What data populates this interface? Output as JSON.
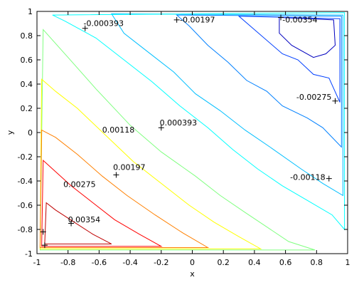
{
  "chart_data": {
    "type": "contour",
    "xlabel": "x",
    "ylabel": "y",
    "xlim": [
      -1,
      1
    ],
    "ylim": [
      -1,
      1
    ],
    "xticks": [
      "-1",
      "-0.8",
      "-0.6",
      "-0.4",
      "-0.2",
      "0",
      "0.2",
      "0.4",
      "0.6",
      "0.8",
      "1"
    ],
    "yticks": [
      "1",
      "0.8",
      "0.6",
      "0.4",
      "0.2",
      "0",
      "-0.2",
      "-0.4",
      "-0.6",
      "-0.8",
      "-1"
    ],
    "grid": false,
    "contours": [
      {
        "level": -0.00354,
        "color": "#0000bf",
        "points": [
          [
            0.56,
            0.95
          ],
          [
            0.91,
            0.93
          ],
          [
            0.92,
            0.72
          ],
          [
            0.86,
            0.65
          ],
          [
            0.78,
            0.62
          ],
          [
            0.64,
            0.72
          ],
          [
            0.56,
            0.82
          ]
        ]
      },
      {
        "level": -0.00275,
        "color": "#003fff",
        "points": [
          [
            0.3,
            0.96
          ],
          [
            0.95,
            0.94
          ],
          [
            0.95,
            0.25
          ],
          [
            0.88,
            0.45
          ],
          [
            0.78,
            0.48
          ],
          [
            0.68,
            0.6
          ],
          [
            0.58,
            0.65
          ]
        ]
      },
      {
        "level": -0.00197,
        "color": "#0080ff",
        "points": [
          [
            -0.1,
            0.97
          ],
          [
            0.96,
            0.96
          ],
          [
            0.96,
            -0.12
          ],
          [
            0.84,
            0.04
          ],
          [
            0.74,
            0.12
          ],
          [
            0.58,
            0.22
          ],
          [
            0.48,
            0.34
          ],
          [
            0.35,
            0.43
          ],
          [
            0.23,
            0.58
          ],
          [
            0.1,
            0.72
          ],
          [
            -0.02,
            0.88
          ]
        ]
      },
      {
        "level": -0.00118,
        "color": "#00bfff",
        "points": [
          [
            -0.52,
            0.98
          ],
          [
            0.97,
            0.97
          ],
          [
            0.97,
            -0.52
          ],
          [
            0.84,
            -0.42
          ],
          [
            0.7,
            -0.3
          ],
          [
            0.5,
            -0.12
          ],
          [
            0.34,
            0.02
          ],
          [
            0.18,
            0.18
          ],
          [
            0.02,
            0.32
          ],
          [
            -0.12,
            0.5
          ],
          [
            -0.28,
            0.66
          ],
          [
            -0.44,
            0.82
          ]
        ]
      },
      {
        "level": -0.000393,
        "color": "#00ffff",
        "points": [
          [
            -0.9,
            0.97
          ],
          [
            0.98,
            0.99
          ],
          [
            0.98,
            -0.8
          ],
          [
            0.9,
            -0.68
          ],
          [
            0.74,
            -0.56
          ],
          [
            0.58,
            -0.44
          ],
          [
            0.42,
            -0.3
          ],
          [
            0.26,
            -0.14
          ],
          [
            0.1,
            0.04
          ],
          [
            -0.08,
            0.22
          ],
          [
            -0.26,
            0.42
          ],
          [
            -0.44,
            0.6
          ],
          [
            -0.62,
            0.78
          ],
          [
            -0.82,
            0.92
          ]
        ]
      },
      {
        "level": 0.000393,
        "color": "#80ff80",
        "points": [
          [
            -0.96,
            0.85
          ],
          [
            -0.98,
            -0.97
          ],
          [
            0.79,
            -0.97
          ],
          [
            0.62,
            -0.9
          ],
          [
            0.48,
            -0.78
          ],
          [
            0.34,
            -0.66
          ],
          [
            0.18,
            -0.52
          ],
          [
            0.02,
            -0.36
          ],
          [
            -0.2,
            -0.16
          ],
          [
            -0.4,
            0.06
          ],
          [
            -0.62,
            0.36
          ],
          [
            -0.8,
            0.62
          ]
        ]
      },
      {
        "level": 0.00118,
        "color": "#ffff00",
        "points": [
          [
            -0.97,
            0.44
          ],
          [
            -0.98,
            -0.96
          ],
          [
            0.44,
            -0.96
          ],
          [
            0.3,
            -0.86
          ],
          [
            0.14,
            -0.74
          ],
          [
            -0.02,
            -0.6
          ],
          [
            -0.2,
            -0.42
          ],
          [
            -0.38,
            -0.24
          ],
          [
            -0.56,
            -0.02
          ],
          [
            -0.74,
            0.2
          ],
          [
            -0.88,
            0.34
          ]
        ]
      },
      {
        "level": 0.00197,
        "color": "#ff8000",
        "points": [
          [
            -0.97,
            0.02
          ],
          [
            -0.98,
            -0.95
          ],
          [
            0.1,
            -0.95
          ],
          [
            -0.06,
            -0.83
          ],
          [
            -0.24,
            -0.68
          ],
          [
            -0.42,
            -0.52
          ],
          [
            -0.58,
            -0.36
          ],
          [
            -0.74,
            -0.18
          ],
          [
            -0.88,
            -0.04
          ]
        ]
      },
      {
        "level": 0.00275,
        "color": "#ff0000",
        "points": [
          [
            -0.96,
            -0.23
          ],
          [
            -0.97,
            -0.94
          ],
          [
            -0.2,
            -0.94
          ],
          [
            -0.34,
            -0.84
          ],
          [
            -0.5,
            -0.72
          ],
          [
            -0.64,
            -0.58
          ],
          [
            -0.78,
            -0.44
          ],
          [
            -0.9,
            -0.3
          ]
        ]
      },
      {
        "level": 0.00354,
        "color": "#bf0000",
        "points": [
          [
            -0.94,
            -0.58
          ],
          [
            -0.95,
            -0.92
          ],
          [
            -0.52,
            -0.92
          ],
          [
            -0.64,
            -0.84
          ],
          [
            -0.76,
            -0.74
          ],
          [
            -0.88,
            -0.64
          ]
        ]
      }
    ],
    "labels": [
      {
        "text": "-0.000393",
        "x": -0.7,
        "y": 0.88,
        "mx": -0.69,
        "my": 0.86
      },
      {
        "text": "-0.00197",
        "x": -0.08,
        "y": 0.91,
        "mx": -0.1,
        "my": 0.93
      },
      {
        "text": "-0.00354",
        "x": 0.58,
        "y": 0.91,
        "mx": 0.57,
        "my": 0.95
      },
      {
        "text": "-0.00275",
        "x": 0.67,
        "y": 0.27,
        "mx": 0.92,
        "my": 0.26
      },
      {
        "text": "-0.00118",
        "x": 0.63,
        "y": -0.39,
        "mx": 0.88,
        "my": -0.38
      },
      {
        "text": "0.000393",
        "x": -0.21,
        "y": 0.06,
        "mx": -0.2,
        "my": 0.04
      },
      {
        "text": "0.00118",
        "x": -0.58,
        "y": 0.0,
        "mx": null,
        "my": null
      },
      {
        "text": "0.00197",
        "x": -0.51,
        "y": -0.31,
        "mx": -0.49,
        "my": -0.35
      },
      {
        "text": "0.00275",
        "x": -0.83,
        "y": -0.45,
        "mx": null,
        "my": null
      },
      {
        "text": "0.00354",
        "x": -0.8,
        "y": -0.74,
        "mx": -0.78,
        "my": -0.75
      }
    ],
    "extra_markers": [
      {
        "x": -0.96,
        "y": -0.82
      },
      {
        "x": -0.95,
        "y": -0.93
      }
    ]
  }
}
